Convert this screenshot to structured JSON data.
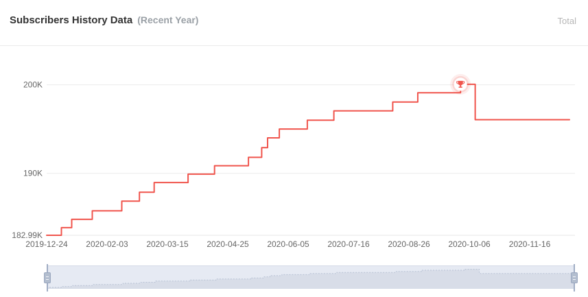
{
  "header": {
    "title": "Subscribers History Data",
    "subtitle": "(Recent Year)",
    "right_label": "Total"
  },
  "colors": {
    "accent": "#f0544c",
    "grid_line": "#ececec",
    "axis_line": "#e6e6e6",
    "axis_text": "#666666",
    "marker_halo": "#f0544c",
    "slider_bg": "#e6eaf3",
    "slider_area": "#d8dde8",
    "slider_line": "#b7c1d4",
    "slider_handle": "#b3becf"
  },
  "icons": {
    "marker_icon": "trophy-icon"
  },
  "chart_data": {
    "type": "line",
    "step": "after",
    "title": "Subscribers History Data (Recent Year)",
    "xlabel": "",
    "ylabel": "",
    "unit": "K subscribers",
    "x_range": [
      "2019-12-24",
      "2020-12-13"
    ],
    "y_range": [
      182.99,
      203
    ],
    "grid": true,
    "x_ticks": [
      "2019-12-24",
      "2020-02-03",
      "2020-03-15",
      "2020-04-25",
      "2020-06-05",
      "2020-07-16",
      "2020-08-26",
      "2020-10-06",
      "2020-11-16"
    ],
    "y_ticks": [
      {
        "label": "200K",
        "value": 200
      },
      {
        "label": "190K",
        "value": 190
      },
      {
        "label": "182.99K",
        "value": 182.99
      }
    ],
    "series": [
      {
        "name": "Total",
        "points": [
          [
            "2019-12-24",
            182.99
          ],
          [
            "2020-01-03",
            183.85
          ],
          [
            "2020-01-10",
            184.8
          ],
          [
            "2020-01-24",
            185.75
          ],
          [
            "2020-02-13",
            186.85
          ],
          [
            "2020-02-25",
            187.85
          ],
          [
            "2020-03-06",
            188.95
          ],
          [
            "2020-03-29",
            189.9
          ],
          [
            "2020-04-16",
            190.85
          ],
          [
            "2020-05-09",
            191.8
          ],
          [
            "2020-05-18",
            192.9
          ],
          [
            "2020-05-22",
            194.0
          ],
          [
            "2020-05-30",
            195.0
          ],
          [
            "2020-06-18",
            196.0
          ],
          [
            "2020-07-06",
            197.05
          ],
          [
            "2020-08-15",
            198.05
          ],
          [
            "2020-09-01",
            199.1
          ],
          [
            "2020-09-30",
            200.05
          ],
          [
            "2020-10-10",
            196.05
          ],
          [
            "2020-12-13",
            196.05
          ]
        ]
      }
    ],
    "marker": {
      "type": "max",
      "icon": "trophy",
      "date": "2020-09-30",
      "value": 200.05
    }
  },
  "datazoom": {
    "left_handle": "drag to adjust range start",
    "right_handle": "drag to adjust range end"
  }
}
